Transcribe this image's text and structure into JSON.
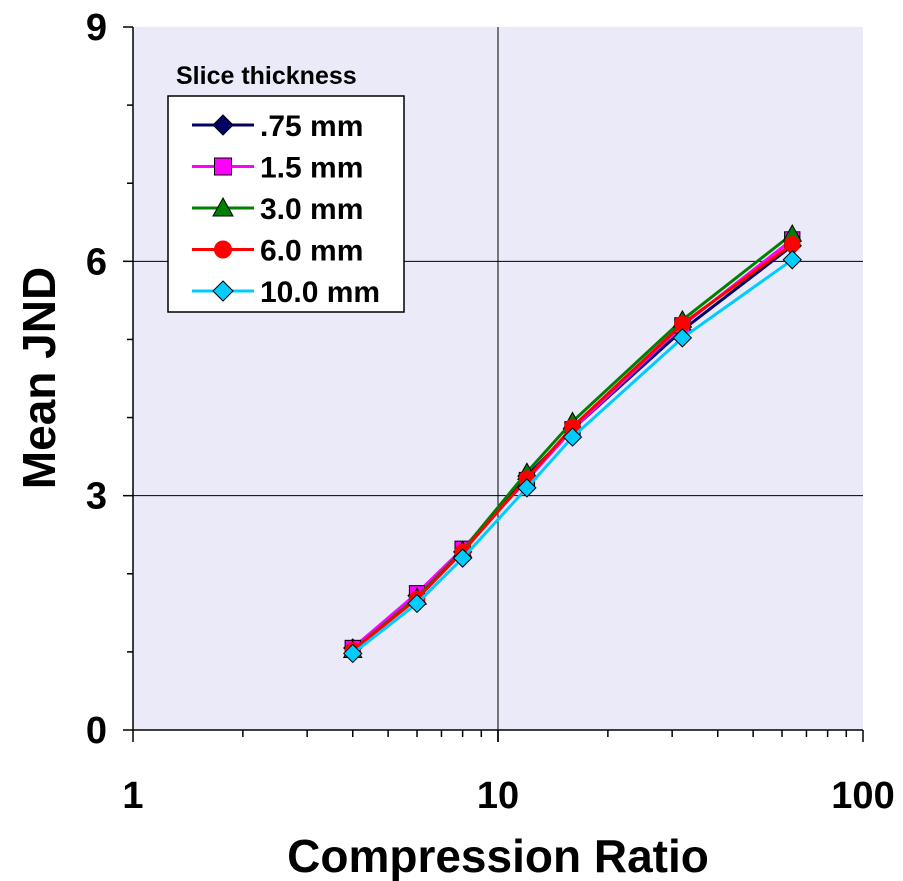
{
  "chart_data": {
    "type": "line",
    "xscale": "log",
    "xlabel": "Compression Ratio",
    "ylabel": "Mean JND",
    "xlim": [
      1,
      100
    ],
    "ylim": [
      0,
      9
    ],
    "x_ticks": [
      "1",
      "10",
      "100"
    ],
    "y_ticks": [
      "0",
      "3",
      "6",
      "9"
    ],
    "grid": true,
    "plot_background": "#eaeaf8",
    "legend": {
      "title": "Slice thickness",
      "position": "top-left"
    },
    "x": [
      4,
      6,
      8,
      12,
      16,
      32,
      64
    ],
    "series": [
      {
        "name": ".75 mm",
        "color": "#000066",
        "marker": "diamond",
        "values": [
          1.05,
          1.72,
          2.28,
          3.25,
          3.85,
          5.12,
          6.2
        ]
      },
      {
        "name": "1.5 mm",
        "color": "#ff00ff",
        "marker": "square",
        "values": [
          1.05,
          1.75,
          2.32,
          3.2,
          3.85,
          5.18,
          6.28
        ]
      },
      {
        "name": "3.0 mm",
        "color": "#008000",
        "marker": "triangle",
        "values": [
          1.02,
          1.7,
          2.3,
          3.3,
          3.95,
          5.25,
          6.35
        ]
      },
      {
        "name": "6.0 mm",
        "color": "#ff0000",
        "marker": "circle",
        "values": [
          1.02,
          1.68,
          2.28,
          3.22,
          3.88,
          5.2,
          6.22
        ]
      },
      {
        "name": "10.0 mm",
        "color": "#00ccff",
        "marker": "diamond",
        "values": [
          0.98,
          1.62,
          2.2,
          3.1,
          3.75,
          5.02,
          6.02
        ]
      }
    ]
  }
}
